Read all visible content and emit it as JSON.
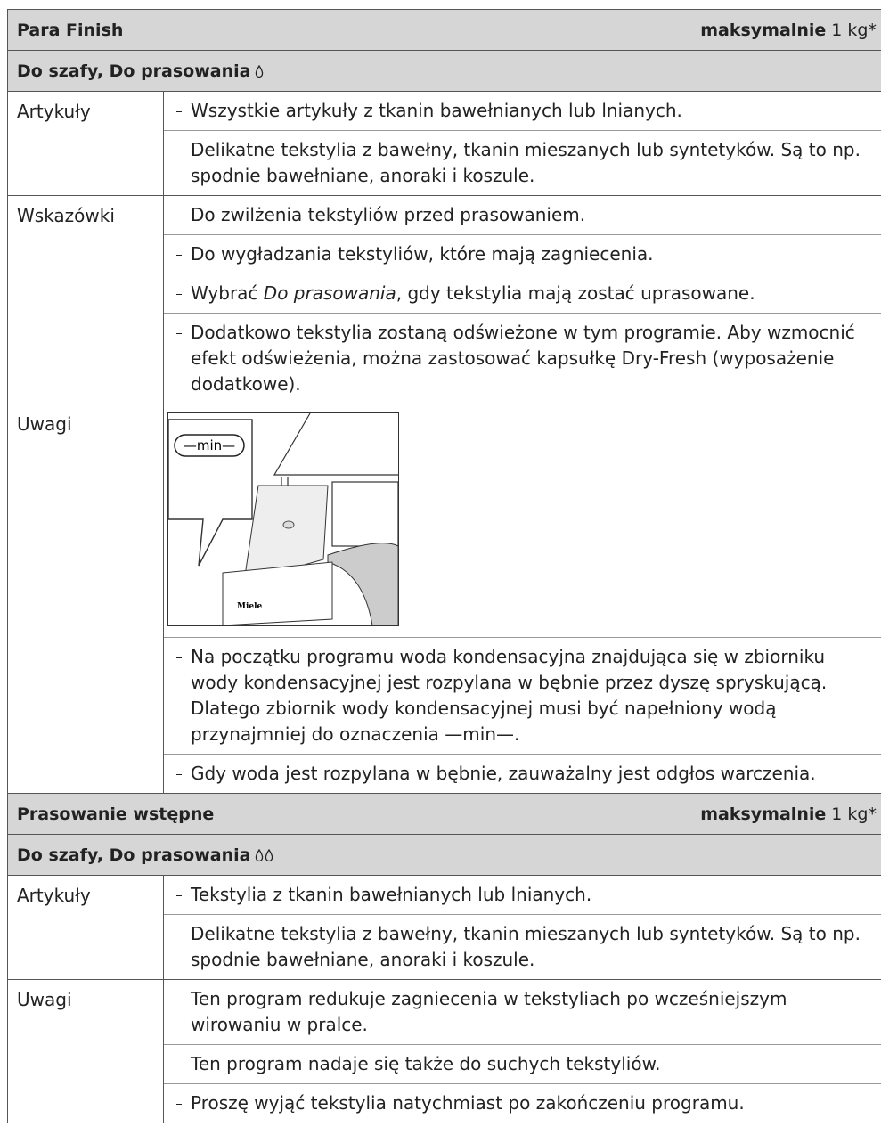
{
  "sections": [
    {
      "header": {
        "program": "Para Finish",
        "capacity_label": "maksymalnie",
        "capacity": "1 kg*"
      },
      "subheader": "Do szafy, Do prasowania",
      "drops": 1,
      "rows": [
        {
          "label": "Artykuły",
          "items": [
            [
              "Wszystkie artykuły z tkanin bawełnianych lub lnianych."
            ],
            [
              "Delikatne tekstylia z bawełny, tkanin mieszanych lub syntetyków. Są to np. spodnie bawełniane, anoraki i koszule."
            ]
          ]
        },
        {
          "label": "Wskazówki",
          "items": [
            [
              "Do zwilżenia tekstyliów przed prasowaniem."
            ],
            [
              "Do wygładzania tekstyliów, które mają zagniecenia."
            ],
            [
              "Wybrać ",
              "Do prasowania",
              ", gdy tekstylia mają zostać uprasowane."
            ],
            [
              "Dodatkowo tekstylia zostaną odświeżone w tym programie. Aby wzmocnić efekt odświeżenia, można zastosować kapsułkę Dry-Fresh (wyposażenie dodatkowe)."
            ]
          ]
        },
        {
          "label": "Uwagi",
          "illustration": {
            "scale_label": "—min—",
            "brand": "Miele"
          },
          "items": [
            [
              "Na początku programu woda kondensacyjna znajdująca się w zbiorniku wody kondensacyjnej jest rozpylana w bębnie przez dyszę spryskującą. Dlatego zbiornik wody kondensacyjnej musi być napełniony wodą przynajmniej do oznaczenia —min—."
            ],
            [
              "Gdy woda jest rozpylana w bębnie, zauważalny jest odgłos warczenia."
            ]
          ]
        }
      ]
    },
    {
      "header": {
        "program": "Prasowanie wstępne",
        "capacity_label": "maksymalnie",
        "capacity": "1 kg*"
      },
      "subheader": "Do szafy, Do prasowania",
      "drops": 2,
      "rows": [
        {
          "label": "Artykuły",
          "items": [
            [
              "Tekstylia z tkanin bawełnianych lub lnianych."
            ],
            [
              "Delikatne tekstylia z bawełny, tkanin mieszanych lub syntetyków. Są to np. spodnie bawełniane, anoraki i koszule."
            ]
          ]
        },
        {
          "label": "Uwagi",
          "items": [
            [
              "Ten program redukuje zagniecenia w tekstyliach po wcześniejszym wirowaniu w pralce."
            ],
            [
              "Ten program nadaje się także do suchych tekstyliów."
            ],
            [
              "Proszę wyjąć tekstylia natychmiast po zakończeniu programu."
            ]
          ]
        }
      ]
    }
  ]
}
